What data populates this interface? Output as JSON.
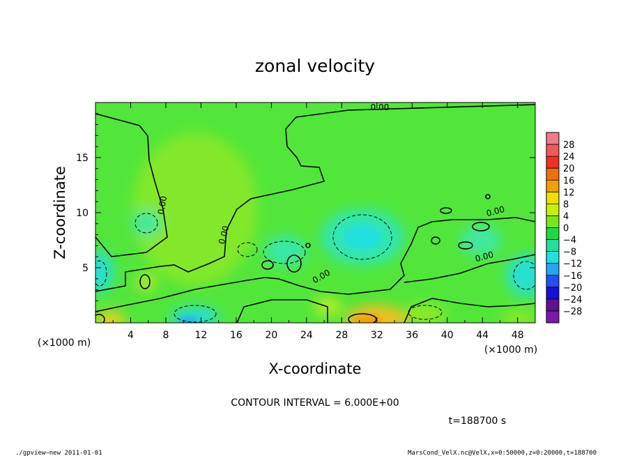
{
  "chart_data": {
    "type": "heatmap",
    "title": "zonal velocity",
    "xlabel": "X-coordinate",
    "ylabel": "Z-coordinate",
    "x_unit_label": "(×1000 m)",
    "xlim": [
      0,
      50
    ],
    "ylim": [
      0,
      20
    ],
    "x_ticks": [
      "4",
      "8",
      "12",
      "16",
      "20",
      "24",
      "28",
      "32",
      "36",
      "40",
      "44",
      "48"
    ],
    "x_tick_values": [
      4,
      8,
      12,
      16,
      20,
      24,
      28,
      32,
      36,
      40,
      44,
      48
    ],
    "y_ticks": [
      "5",
      "10",
      "15"
    ],
    "y_tick_values": [
      5,
      10,
      15
    ],
    "contour_label": "0.00",
    "contour_interval_text": "CONTOUR INTERVAL = 6.000E+00",
    "time_text": "t=188700 s",
    "colorbar": {
      "labels": [
        "28",
        "24",
        "20",
        "16",
        "12",
        "8",
        "4",
        "0",
        "−4",
        "−8",
        "−12",
        "−16",
        "−20",
        "−24",
        "−28"
      ],
      "colors": [
        "#f07a8a",
        "#f05a5a",
        "#f03020",
        "#f07010",
        "#f0a000",
        "#f0e000",
        "#c8f000",
        "#78e818",
        "#20d840",
        "#20e0a0",
        "#20e0e0",
        "#20a8f0",
        "#2050f0",
        "#1810d8",
        "#601090",
        "#7a18a8"
      ]
    },
    "features": [
      {
        "name": "upper-core",
        "x": 30,
        "z": 7,
        "value": -5
      },
      {
        "name": "right-mid-core",
        "x": 48,
        "z": 4,
        "value": -6
      },
      {
        "name": "left-mid-core",
        "x": 0.5,
        "z": 4,
        "value": -6
      },
      {
        "name": "central-band",
        "x": 12,
        "z": 10,
        "value": 4
      },
      {
        "name": "bottom-peak",
        "x": 31,
        "z": 0.5,
        "value": 16
      },
      {
        "name": "bottom-low",
        "x": 10,
        "z": 0.5,
        "value": -13
      }
    ]
  },
  "footer": {
    "left": "./gpview—new   2011-01-01",
    "right": "MarsCond_VelX.nc@VelX,x=0:50000,z=0:20000,t=188700"
  }
}
